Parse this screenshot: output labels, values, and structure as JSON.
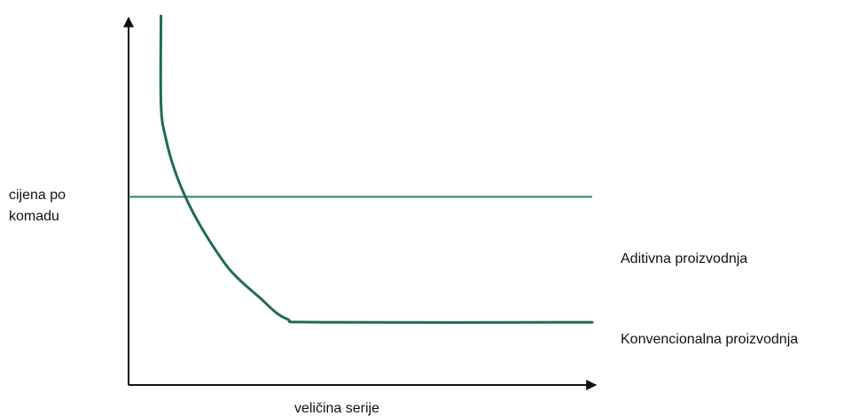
{
  "chart_data": {
    "type": "line",
    "title": "",
    "ylabel": "cijena po komadu",
    "ylabel_lines": [
      "cijena po",
      "komadu"
    ],
    "xlabel": "veličina serije",
    "axes_numbered": false,
    "grid": false,
    "legend": "none",
    "series_labels_position": "right-end of each line",
    "series": [
      {
        "name": "Aditivna proizvodnja",
        "shape": "horizontal line (constant cost per piece)",
        "color": "#2e7d6b",
        "x": [
          0,
          1
        ],
        "y": [
          0.51,
          0.51
        ]
      },
      {
        "name": "Konvencionalna proizvodnja",
        "shape": "decreasing curve that flattens (cost per piece falls with batch size)",
        "color": "#1f6b57",
        "x": [
          0.07,
          0.07,
          0.08,
          0.1,
          0.13,
          0.17,
          0.22,
          0.28,
          0.34,
          0.42,
          1.0
        ],
        "y": [
          1.0,
          0.76,
          0.67,
          0.58,
          0.49,
          0.4,
          0.31,
          0.24,
          0.18,
          0.17,
          0.17
        ]
      }
    ]
  }
}
